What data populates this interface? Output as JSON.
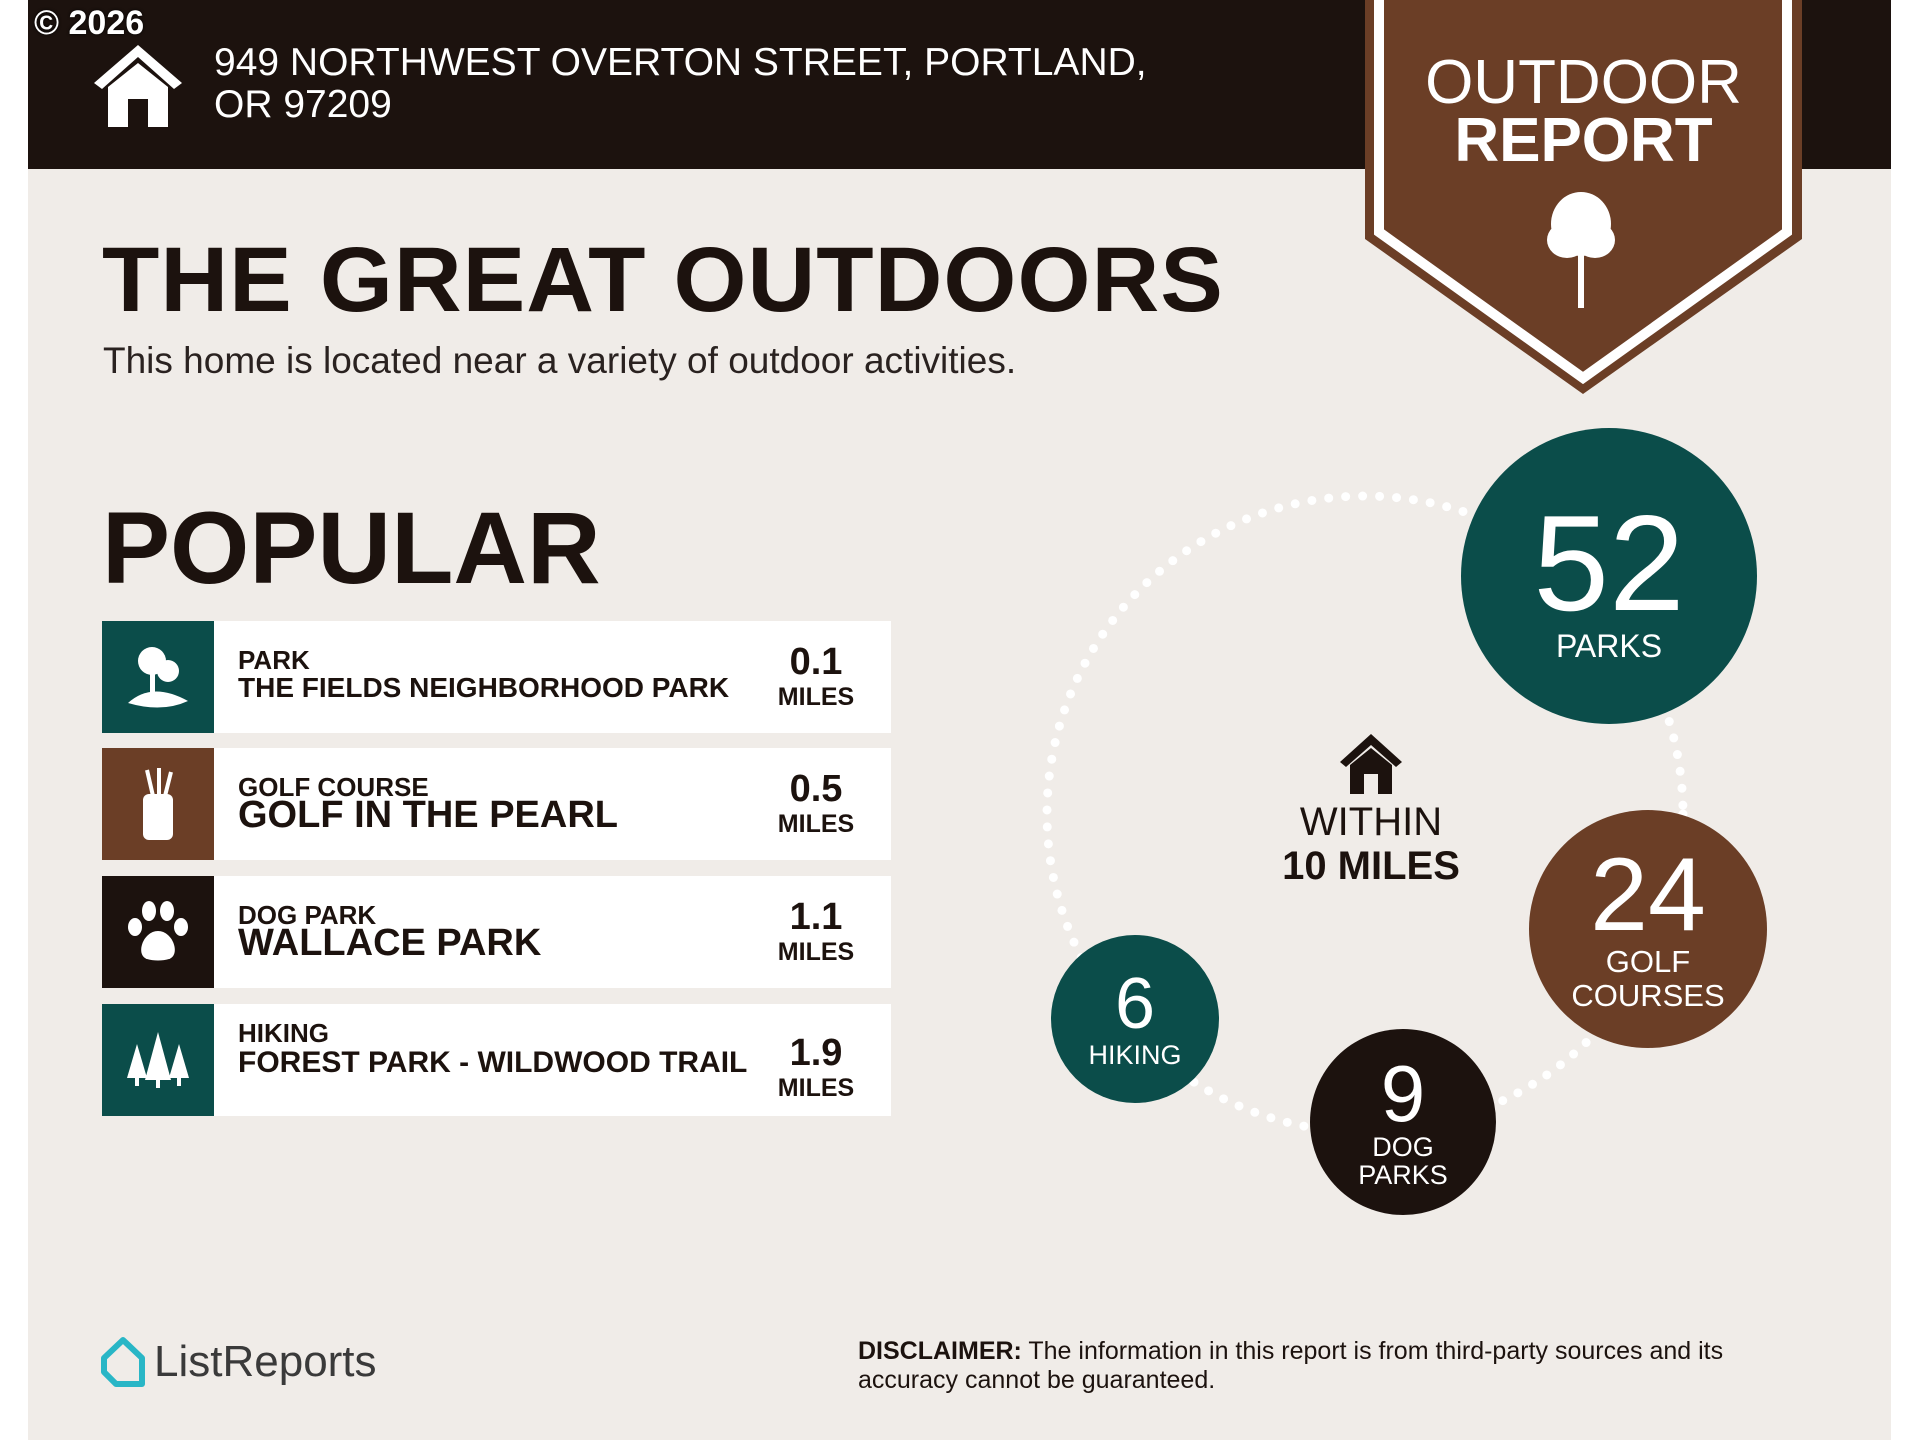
{
  "copyright": "© 2026",
  "header": {
    "address": "949 NORTHWEST OVERTON STREET, PORTLAND, OR 97209",
    "icon": "house-icon"
  },
  "banner": {
    "line1": "OUTDOOR",
    "line2": "REPORT",
    "icon": "tree-icon",
    "color": "#6b3e26"
  },
  "title": "THE GREAT OUTDOORS",
  "subtitle": "This home is located near a variety of outdoor activities.",
  "popular": {
    "heading": "POPULAR",
    "items": [
      {
        "category": "PARK",
        "name": "THE FIELDS NEIGHBORHOOD PARK",
        "distance": "0.1",
        "unit": "MILES",
        "icon": "park-icon",
        "color": "#0b4d4a"
      },
      {
        "category": "GOLF COURSE",
        "name": "GOLF IN THE PEARL",
        "distance": "0.5",
        "unit": "MILES",
        "icon": "golf-bag-icon",
        "color": "#6b3e26"
      },
      {
        "category": "DOG PARK",
        "name": "WALLACE PARK",
        "distance": "1.1",
        "unit": "MILES",
        "icon": "paw-icon",
        "color": "#1c120e"
      },
      {
        "category": "HIKING",
        "name": "FOREST PARK - WILDWOOD TRAIL",
        "distance": "1.9",
        "unit": "MILES",
        "icon": "trees-icon",
        "color": "#0b4d4a"
      }
    ]
  },
  "summary": {
    "within_line1": "WITHIN",
    "within_line2": "10 MILES",
    "parks": {
      "count": "52",
      "label": "PARKS"
    },
    "golf": {
      "count": "24",
      "label1": "GOLF",
      "label2": "COURSES"
    },
    "dog": {
      "count": "9",
      "label1": "DOG",
      "label2": "PARKS"
    },
    "hiking": {
      "count": "6",
      "label": "HIKING"
    }
  },
  "footer": {
    "logo": "ListReports",
    "disclaimer_label": "DISCLAIMER:",
    "disclaimer": " The information in this report is from third-party sources and its accuracy cannot be guaranteed."
  }
}
